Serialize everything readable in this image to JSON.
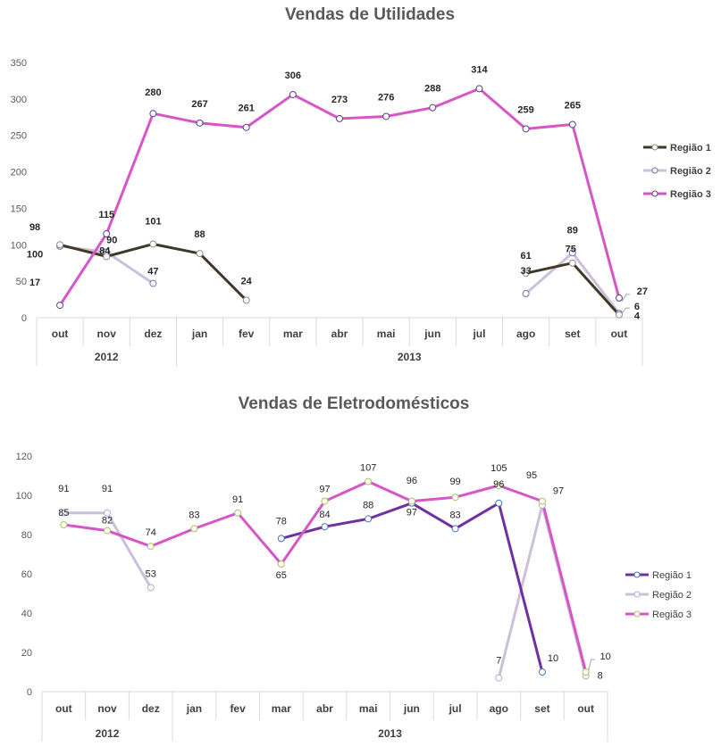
{
  "chart_data": [
    {
      "type": "line",
      "title": "Vendas de Utilidades",
      "categories": [
        "out",
        "nov",
        "dez",
        "jan",
        "fev",
        "mar",
        "abr",
        "mai",
        "jun",
        "jul",
        "ago",
        "set",
        "out"
      ],
      "year_groups": [
        {
          "label": "2012",
          "span": [
            0,
            2
          ]
        },
        {
          "label": "2013",
          "span": [
            3,
            12
          ]
        }
      ],
      "y_ticks": [
        "0",
        "50",
        "100",
        "150",
        "200",
        "250",
        "300",
        "350"
      ],
      "ylim": [
        0,
        350
      ],
      "legend_position": "right",
      "series": [
        {
          "name": "Região 1",
          "color": "#3f3926",
          "values": [
            100,
            84,
            101,
            88,
            24,
            null,
            null,
            null,
            null,
            null,
            61,
            75,
            4
          ]
        },
        {
          "name": "Região 2",
          "color": "#cbbfdc",
          "values": [
            98,
            90,
            47,
            null,
            null,
            null,
            null,
            null,
            null,
            null,
            33,
            89,
            6
          ]
        },
        {
          "name": "Região 3",
          "color": "#d656c8",
          "values": [
            17,
            115,
            280,
            267,
            261,
            306,
            273,
            276,
            288,
            314,
            259,
            265,
            27
          ]
        }
      ],
      "data_labels": [
        {
          "text": "98",
          "series": 1,
          "index": 0
        },
        {
          "text": "100",
          "series": 0,
          "index": 0
        },
        {
          "text": "17",
          "series": 2,
          "index": 0
        },
        {
          "text": "115",
          "series": 2,
          "index": 1
        },
        {
          "text": "90",
          "series": 1,
          "index": 1
        },
        {
          "text": "84",
          "series": 0,
          "index": 1
        },
        {
          "text": "280",
          "series": 2,
          "index": 2
        },
        {
          "text": "101",
          "series": 0,
          "index": 2
        },
        {
          "text": "47",
          "series": 1,
          "index": 2
        },
        {
          "text": "267",
          "series": 2,
          "index": 3
        },
        {
          "text": "88",
          "series": 0,
          "index": 3
        },
        {
          "text": "261",
          "series": 2,
          "index": 4
        },
        {
          "text": "24",
          "series": 0,
          "index": 4
        },
        {
          "text": "306",
          "series": 2,
          "index": 5
        },
        {
          "text": "273",
          "series": 2,
          "index": 6
        },
        {
          "text": "276",
          "series": 2,
          "index": 7
        },
        {
          "text": "288",
          "series": 2,
          "index": 8
        },
        {
          "text": "314",
          "series": 2,
          "index": 9
        },
        {
          "text": "259",
          "series": 2,
          "index": 10
        },
        {
          "text": "61",
          "series": 0,
          "index": 10
        },
        {
          "text": "33",
          "series": 1,
          "index": 10
        },
        {
          "text": "265",
          "series": 2,
          "index": 11
        },
        {
          "text": "89",
          "series": 1,
          "index": 11
        },
        {
          "text": "75",
          "series": 0,
          "index": 11
        },
        {
          "text": "27",
          "series": 2,
          "index": 12
        },
        {
          "text": "6",
          "series": 1,
          "index": 12
        },
        {
          "text": "4",
          "series": 0,
          "index": 12
        }
      ]
    },
    {
      "type": "line",
      "title": "Vendas de Eletrodomésticos",
      "categories": [
        "out",
        "nov",
        "dez",
        "jan",
        "fev",
        "mar",
        "abr",
        "mai",
        "jun",
        "jul",
        "ago",
        "set",
        "out"
      ],
      "year_groups": [
        {
          "label": "2012",
          "span": [
            0,
            2
          ]
        },
        {
          "label": "2013",
          "span": [
            3,
            12
          ]
        }
      ],
      "y_ticks": [
        "0",
        "20",
        "40",
        "60",
        "80",
        "100",
        "120"
      ],
      "ylim": [
        0,
        120
      ],
      "legend_position": "right",
      "series": [
        {
          "name": "Região 1",
          "color": "#7030a0",
          "values": [
            null,
            null,
            null,
            null,
            null,
            78,
            84,
            88,
            96,
            83,
            96,
            10,
            null
          ]
        },
        {
          "name": "Região 2",
          "color": "#cbbfdc",
          "values": [
            91,
            91,
            53,
            null,
            null,
            null,
            null,
            null,
            null,
            null,
            7,
            95,
            8
          ]
        },
        {
          "name": "Região 3",
          "color": "#d656c8",
          "values": [
            85,
            82,
            74,
            83,
            91,
            65,
            97,
            107,
            97,
            99,
            105,
            97,
            10
          ]
        }
      ],
      "data_labels": [
        {
          "text": "91",
          "series": 1,
          "index": 0
        },
        {
          "text": "85",
          "series": 2,
          "index": 0
        },
        {
          "text": "91",
          "series": 1,
          "index": 1
        },
        {
          "text": "82",
          "series": 2,
          "index": 1
        },
        {
          "text": "74",
          "series": 2,
          "index": 2
        },
        {
          "text": "53",
          "series": 1,
          "index": 2
        },
        {
          "text": "83",
          "series": 2,
          "index": 3
        },
        {
          "text": "91",
          "series": 2,
          "index": 4
        },
        {
          "text": "78",
          "series": 0,
          "index": 5
        },
        {
          "text": "65",
          "series": 2,
          "index": 5
        },
        {
          "text": "97",
          "series": 2,
          "index": 6
        },
        {
          "text": "84",
          "series": 0,
          "index": 6
        },
        {
          "text": "107",
          "series": 2,
          "index": 7
        },
        {
          "text": "88",
          "series": 0,
          "index": 7
        },
        {
          "text": "96",
          "series": 0,
          "index": 8
        },
        {
          "text": "97",
          "series": 2,
          "index": 8
        },
        {
          "text": "99",
          "series": 2,
          "index": 9
        },
        {
          "text": "83",
          "series": 0,
          "index": 9
        },
        {
          "text": "105",
          "series": 2,
          "index": 10
        },
        {
          "text": "96",
          "series": 0,
          "index": 10
        },
        {
          "text": "7",
          "series": 1,
          "index": 10
        },
        {
          "text": "97",
          "series": 2,
          "index": 11
        },
        {
          "text": "95",
          "series": 1,
          "index": 11
        },
        {
          "text": "10",
          "series": 0,
          "index": 11
        },
        {
          "text": "10",
          "series": 2,
          "index": 12
        },
        {
          "text": "8",
          "series": 1,
          "index": 12
        }
      ]
    }
  ]
}
